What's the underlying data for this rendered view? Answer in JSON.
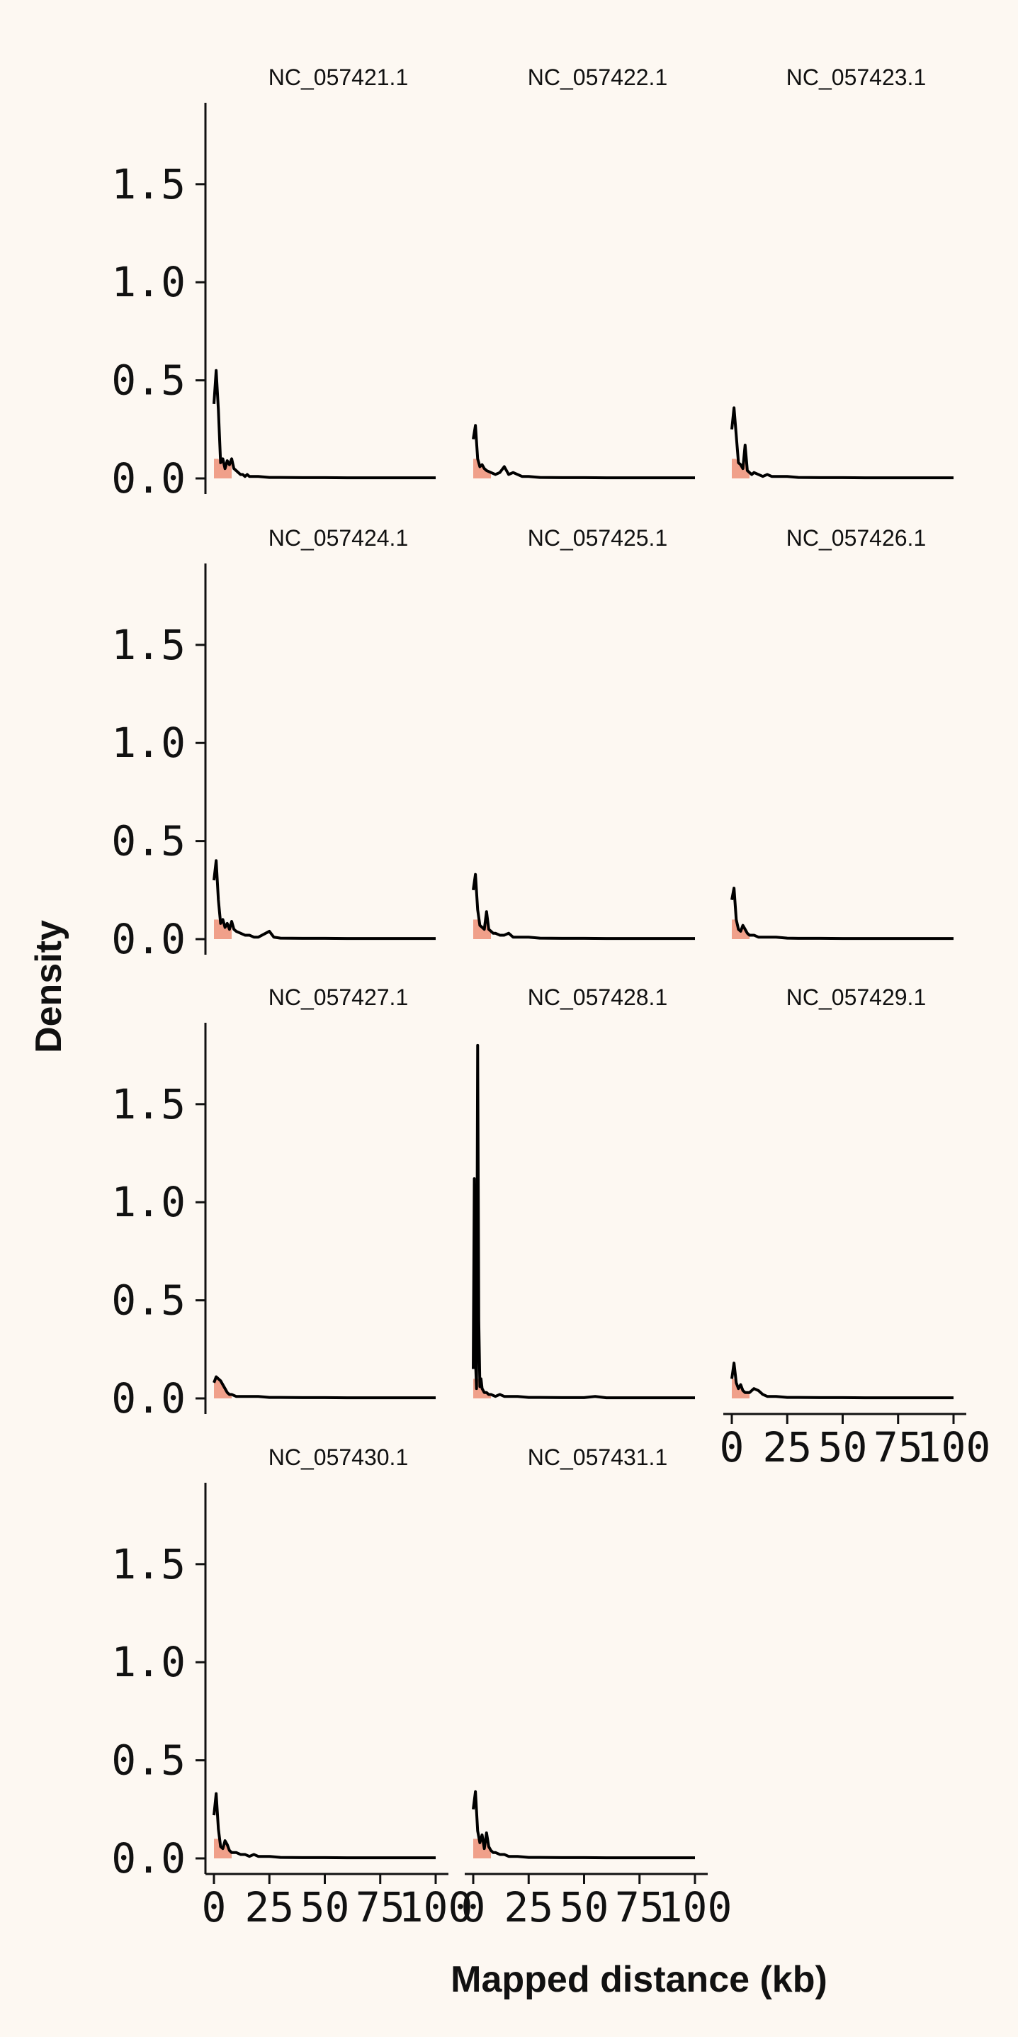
{
  "chart_data": {
    "type": "area",
    "ylabel": "Density",
    "xlabel": "Mapped distance (kb)",
    "ylim": [
      0,
      1.85
    ],
    "xlim": [
      0,
      100
    ],
    "yticks": [
      "0.0",
      "0.5",
      "1.0",
      "1.5"
    ],
    "yticks_values": [
      0,
      0.5,
      1.0,
      1.5
    ],
    "xticks": [
      "0",
      "25",
      "50",
      "75",
      "100"
    ],
    "xticks_values": [
      0,
      25,
      50,
      75,
      100
    ],
    "colors": {
      "fill": "#f0a08a",
      "line": "#000000",
      "background": "#fdf8f2"
    },
    "panels": [
      {
        "title": "NC_057421.1",
        "x": [
          0,
          1,
          2,
          3,
          4,
          5,
          6,
          7,
          8,
          9,
          10,
          11,
          12,
          13,
          14,
          15,
          16,
          18,
          20,
          25,
          30,
          40,
          50,
          60,
          70,
          80,
          90,
          100
        ],
        "y": [
          0.38,
          0.55,
          0.35,
          0.08,
          0.1,
          0.05,
          0.09,
          0.07,
          0.1,
          0.05,
          0.04,
          0.03,
          0.02,
          0.02,
          0.01,
          0.02,
          0.01,
          0.01,
          0.01,
          0.005,
          0.005,
          0.004,
          0.004,
          0.003,
          0.003,
          0.003,
          0.003,
          0.003
        ]
      },
      {
        "title": "NC_057422.1",
        "x": [
          0,
          1,
          2,
          3,
          4,
          5,
          6,
          8,
          10,
          12,
          14,
          15,
          16,
          18,
          20,
          22,
          25,
          30,
          40,
          50,
          60,
          70,
          80,
          90,
          100
        ],
        "y": [
          0.2,
          0.27,
          0.1,
          0.06,
          0.07,
          0.05,
          0.04,
          0.03,
          0.02,
          0.03,
          0.06,
          0.04,
          0.02,
          0.03,
          0.02,
          0.01,
          0.01,
          0.005,
          0.004,
          0.004,
          0.003,
          0.003,
          0.003,
          0.003,
          0.003
        ]
      },
      {
        "title": "NC_057423.1",
        "x": [
          0,
          1,
          2,
          3,
          4,
          5,
          6,
          7,
          8,
          9,
          10,
          12,
          14,
          16,
          18,
          20,
          25,
          30,
          40,
          50,
          60,
          70,
          80,
          90,
          100
        ],
        "y": [
          0.25,
          0.36,
          0.22,
          0.08,
          0.07,
          0.05,
          0.17,
          0.04,
          0.03,
          0.02,
          0.03,
          0.02,
          0.01,
          0.02,
          0.01,
          0.01,
          0.01,
          0.005,
          0.004,
          0.004,
          0.003,
          0.003,
          0.003,
          0.003,
          0.003
        ]
      },
      {
        "title": "NC_057424.1",
        "x": [
          0,
          1,
          2,
          3,
          4,
          5,
          6,
          7,
          8,
          9,
          10,
          12,
          14,
          16,
          18,
          20,
          25,
          27,
          30,
          40,
          50,
          60,
          70,
          80,
          90,
          100
        ],
        "y": [
          0.3,
          0.4,
          0.2,
          0.08,
          0.1,
          0.06,
          0.08,
          0.05,
          0.09,
          0.05,
          0.04,
          0.03,
          0.02,
          0.02,
          0.01,
          0.01,
          0.04,
          0.01,
          0.005,
          0.004,
          0.004,
          0.003,
          0.003,
          0.003,
          0.003,
          0.003
        ]
      },
      {
        "title": "NC_057425.1",
        "x": [
          0,
          1,
          2,
          3,
          4,
          5,
          6,
          7,
          8,
          9,
          10,
          12,
          14,
          16,
          18,
          20,
          25,
          30,
          40,
          50,
          60,
          70,
          80,
          90,
          100
        ],
        "y": [
          0.25,
          0.33,
          0.15,
          0.07,
          0.06,
          0.05,
          0.14,
          0.05,
          0.04,
          0.03,
          0.03,
          0.02,
          0.02,
          0.03,
          0.01,
          0.01,
          0.01,
          0.005,
          0.004,
          0.004,
          0.003,
          0.003,
          0.003,
          0.003,
          0.003
        ]
      },
      {
        "title": "NC_057426.1",
        "x": [
          0,
          1,
          2,
          3,
          4,
          5,
          6,
          7,
          8,
          9,
          10,
          12,
          14,
          16,
          18,
          20,
          25,
          30,
          40,
          50,
          60,
          70,
          80,
          90,
          100
        ],
        "y": [
          0.2,
          0.26,
          0.1,
          0.05,
          0.04,
          0.07,
          0.05,
          0.03,
          0.02,
          0.02,
          0.02,
          0.01,
          0.01,
          0.01,
          0.01,
          0.01,
          0.005,
          0.004,
          0.004,
          0.003,
          0.003,
          0.003,
          0.003,
          0.003,
          0.003
        ]
      },
      {
        "title": "NC_057427.1",
        "x": [
          0,
          1,
          2,
          3,
          4,
          5,
          6,
          7,
          8,
          10,
          12,
          14,
          16,
          20,
          25,
          30,
          40,
          50,
          60,
          70,
          80,
          90,
          100
        ],
        "y": [
          0.08,
          0.11,
          0.1,
          0.09,
          0.07,
          0.05,
          0.03,
          0.02,
          0.02,
          0.01,
          0.01,
          0.01,
          0.01,
          0.01,
          0.005,
          0.005,
          0.004,
          0.004,
          0.003,
          0.003,
          0.003,
          0.003,
          0.003
        ]
      },
      {
        "title": "NC_057428.1",
        "x": [
          0,
          0.5,
          1,
          1.5,
          2,
          2.5,
          3,
          3.5,
          4,
          4.5,
          5,
          6,
          7,
          8,
          10,
          12,
          14,
          16,
          20,
          25,
          30,
          40,
          50,
          55,
          60,
          70,
          80,
          90,
          100
        ],
        "y": [
          0.15,
          1.12,
          0.2,
          0.05,
          1.8,
          0.4,
          0.06,
          0.1,
          0.05,
          0.04,
          0.03,
          0.03,
          0.02,
          0.02,
          0.01,
          0.02,
          0.01,
          0.01,
          0.01,
          0.005,
          0.005,
          0.004,
          0.004,
          0.01,
          0.003,
          0.003,
          0.003,
          0.003,
          0.003
        ]
      },
      {
        "title": "NC_057429.1",
        "x": [
          0,
          1,
          2,
          3,
          4,
          5,
          6,
          8,
          10,
          12,
          14,
          16,
          18,
          20,
          25,
          30,
          40,
          50,
          60,
          70,
          80,
          90,
          100
        ],
        "y": [
          0.1,
          0.18,
          0.08,
          0.05,
          0.07,
          0.04,
          0.03,
          0.03,
          0.05,
          0.04,
          0.02,
          0.01,
          0.01,
          0.01,
          0.005,
          0.005,
          0.004,
          0.004,
          0.003,
          0.003,
          0.003,
          0.003,
          0.003
        ]
      },
      {
        "title": "NC_057430.1",
        "x": [
          0,
          1,
          2,
          3,
          4,
          5,
          6,
          7,
          8,
          10,
          12,
          14,
          16,
          18,
          20,
          25,
          30,
          40,
          50,
          60,
          70,
          80,
          90,
          100
        ],
        "y": [
          0.22,
          0.33,
          0.15,
          0.06,
          0.05,
          0.09,
          0.07,
          0.04,
          0.03,
          0.03,
          0.02,
          0.02,
          0.01,
          0.02,
          0.01,
          0.01,
          0.005,
          0.004,
          0.004,
          0.003,
          0.003,
          0.003,
          0.003,
          0.003
        ]
      },
      {
        "title": "NC_057431.1",
        "x": [
          0,
          1,
          2,
          3,
          4,
          5,
          6,
          7,
          8,
          9,
          10,
          12,
          14,
          16,
          18,
          20,
          25,
          30,
          40,
          50,
          60,
          70,
          80,
          90,
          100
        ],
        "y": [
          0.25,
          0.34,
          0.14,
          0.08,
          0.12,
          0.05,
          0.13,
          0.06,
          0.04,
          0.03,
          0.03,
          0.02,
          0.02,
          0.01,
          0.01,
          0.01,
          0.005,
          0.005,
          0.004,
          0.004,
          0.003,
          0.003,
          0.003,
          0.003,
          0.003
        ]
      }
    ]
  }
}
